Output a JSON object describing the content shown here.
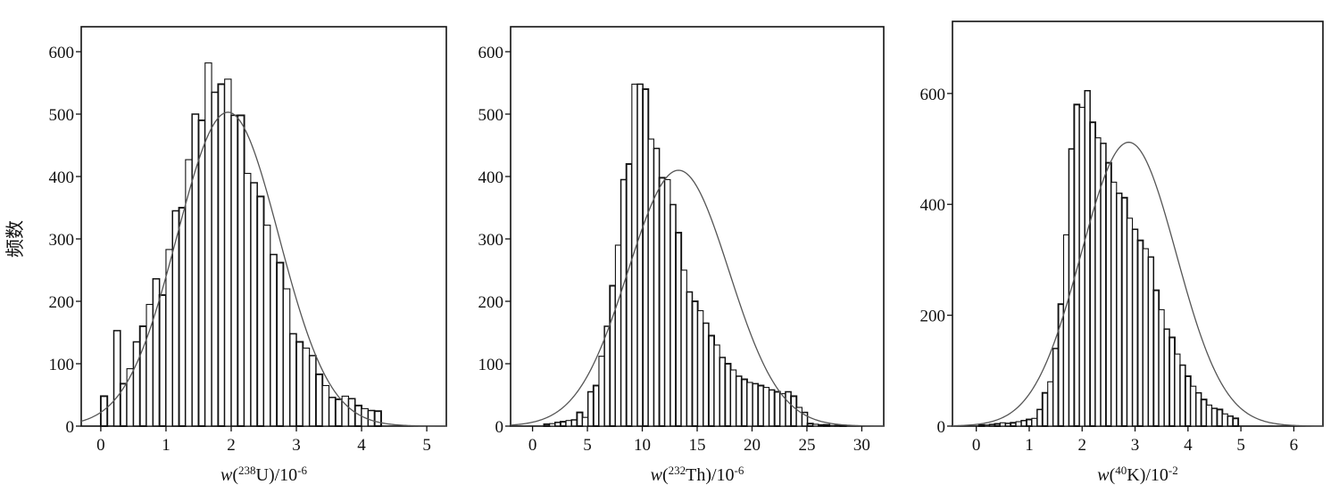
{
  "figure": {
    "ylabel": "频数"
  },
  "chart_data": [
    {
      "type": "bar",
      "title": "",
      "xlabel": "w(238U)/10-6",
      "xlabel_parts": {
        "w": "w",
        "open": "(",
        "sup": "238",
        "element": "U",
        "close": ")/10",
        "exp": "-6"
      },
      "ylabel": "频数",
      "xlim": [
        -0.3,
        5.3
      ],
      "ylim": [
        0,
        640
      ],
      "xticks": [
        0,
        1,
        2,
        3,
        4,
        5
      ],
      "yticks": [
        0,
        100,
        200,
        300,
        400,
        500,
        600
      ],
      "bin_start": 0.05,
      "bin_width": 0.1,
      "values": [
        48,
        0,
        153,
        68,
        92,
        135,
        160,
        195,
        236,
        210,
        283,
        345,
        350,
        427,
        500,
        490,
        582,
        535,
        548,
        556,
        498,
        498,
        405,
        390,
        368,
        322,
        275,
        262,
        220,
        148,
        135,
        125,
        113,
        83,
        65,
        46,
        43,
        48,
        44,
        33,
        28,
        25,
        24
      ],
      "fit_curve": {
        "type": "normal",
        "mean": 1.95,
        "sd": 0.78,
        "peak": 503
      }
    },
    {
      "type": "bar",
      "title": "",
      "xlabel": "w(232Th)/10-6",
      "xlabel_parts": {
        "w": "w",
        "open": "(",
        "sup": "232",
        "element": "Th",
        "close": ")/10",
        "exp": "-6"
      },
      "ylabel": "",
      "xlim": [
        -2,
        32
      ],
      "ylim": [
        0,
        640
      ],
      "xticks": [
        0,
        5,
        10,
        15,
        20,
        25,
        30
      ],
      "yticks": [
        0,
        100,
        200,
        300,
        400,
        500,
        600
      ],
      "bin_start": 1.3,
      "bin_width": 0.5,
      "values": [
        3,
        4,
        6,
        7,
        9,
        10,
        22,
        14,
        55,
        65,
        112,
        160,
        225,
        290,
        395,
        420,
        548,
        548,
        540,
        460,
        445,
        398,
        395,
        355,
        310,
        250,
        215,
        200,
        185,
        165,
        145,
        130,
        110,
        100,
        90,
        80,
        75,
        70,
        68,
        65,
        62,
        58,
        55,
        52,
        55,
        48,
        30,
        22,
        4,
        3,
        2,
        2,
        1,
        1,
        1
      ],
      "fit_curve": {
        "type": "normal",
        "mean": 13.3,
        "sd": 4.6,
        "peak": 410
      }
    },
    {
      "type": "bar",
      "title": "",
      "xlabel": "w(40K)/10-2",
      "xlabel_parts": {
        "w": "w",
        "open": "(",
        "sup": "40",
        "element": "K",
        "close": ")/10",
        "exp": "-2"
      },
      "ylabel": "",
      "xlim": [
        -0.45,
        6.55
      ],
      "ylim": [
        0,
        730
      ],
      "xticks": [
        0,
        1,
        2,
        3,
        4,
        5,
        6
      ],
      "yticks": [
        0,
        200,
        400,
        600
      ],
      "bin_start": 0.1,
      "bin_width": 0.1,
      "values": [
        2,
        2,
        3,
        4,
        6,
        5,
        6,
        8,
        10,
        12,
        14,
        30,
        60,
        80,
        140,
        220,
        345,
        500,
        580,
        575,
        605,
        548,
        520,
        510,
        475,
        440,
        420,
        412,
        375,
        355,
        335,
        320,
        305,
        245,
        210,
        175,
        160,
        130,
        110,
        90,
        72,
        60,
        48,
        38,
        32,
        30,
        22,
        18,
        14
      ],
      "fit_curve": {
        "type": "normal",
        "mean": 2.88,
        "sd": 0.9,
        "peak": 512
      }
    }
  ]
}
